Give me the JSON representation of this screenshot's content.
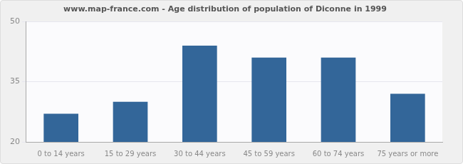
{
  "chart_data": {
    "type": "bar",
    "title": "www.map-france.com - Age distribution of population of Diconne in 1999",
    "categories": [
      "0 to 14 years",
      "15 to 29 years",
      "30 to 44 years",
      "45 to 59 years",
      "60 to 74 years",
      "75 years or more"
    ],
    "values": [
      27,
      30,
      44,
      41,
      41,
      32
    ],
    "color": "#336699",
    "ylim": [
      20,
      50
    ],
    "yticks": [
      20,
      35,
      50
    ],
    "grid": true
  }
}
